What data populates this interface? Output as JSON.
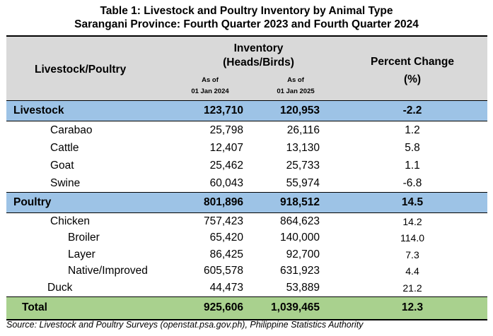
{
  "title": {
    "line1": "Table 1: Livestock and Poultry Inventory by Animal Type",
    "line2": "Sarangani Province: Fourth Quarter 2023 and Fourth Quarter 2024"
  },
  "header": {
    "col1": "Livestock/Poultry",
    "inventory_line1": "Inventory",
    "inventory_line2": "(Heads/Birds)",
    "col2_line1": "As of",
    "col2_line2": "01 Jan 2024",
    "col3_line1": "As of",
    "col3_line2": "01 Jan 2025",
    "pct_line1": "Percent Change",
    "pct_line2": "(%)"
  },
  "rows": [
    {
      "label": "Livestock",
      "v2024": "123,710",
      "v2025": "120,953",
      "pct": "-2.2"
    },
    {
      "label": "Carabao",
      "v2024": "25,798",
      "v2025": "26,116",
      "pct": "1.2"
    },
    {
      "label": "Cattle",
      "v2024": "12,407",
      "v2025": "13,130",
      "pct": "5.8"
    },
    {
      "label": "Goat",
      "v2024": "25,462",
      "v2025": "25,733",
      "pct": "1.1"
    },
    {
      "label": "Swine",
      "v2024": "60,043",
      "v2025": "55,974",
      "pct": "-6.8"
    },
    {
      "label": "Poultry",
      "v2024": "801,896",
      "v2025": "918,512",
      "pct": "14.5"
    },
    {
      "label": "Chicken",
      "v2024": "757,423",
      "v2025": "864,623",
      "pct": "14.2"
    },
    {
      "label": "Broiler",
      "v2024": "65,420",
      "v2025": "140,000",
      "pct": "114.0"
    },
    {
      "label": "Layer",
      "v2024": "86,425",
      "v2025": "92,700",
      "pct": "7.3"
    },
    {
      "label": "Native/Improved",
      "v2024": "605,578",
      "v2025": "631,923",
      "pct": "4.4"
    },
    {
      "label": "Duck",
      "v2024": "44,473",
      "v2025": "53,889",
      "pct": "21.2"
    },
    {
      "label": "Total",
      "v2024": "925,606",
      "v2025": "1,039,465",
      "pct": "12.3"
    }
  ],
  "colors": {
    "header_bg": "#d9d9d9",
    "group_bg": "#9dc3e6",
    "total_bg": "#a9d18e"
  },
  "source": "Source: Livestock and Poultry Surveys (openstat.psa.gov.ph), Philippine Statistics Authority"
}
